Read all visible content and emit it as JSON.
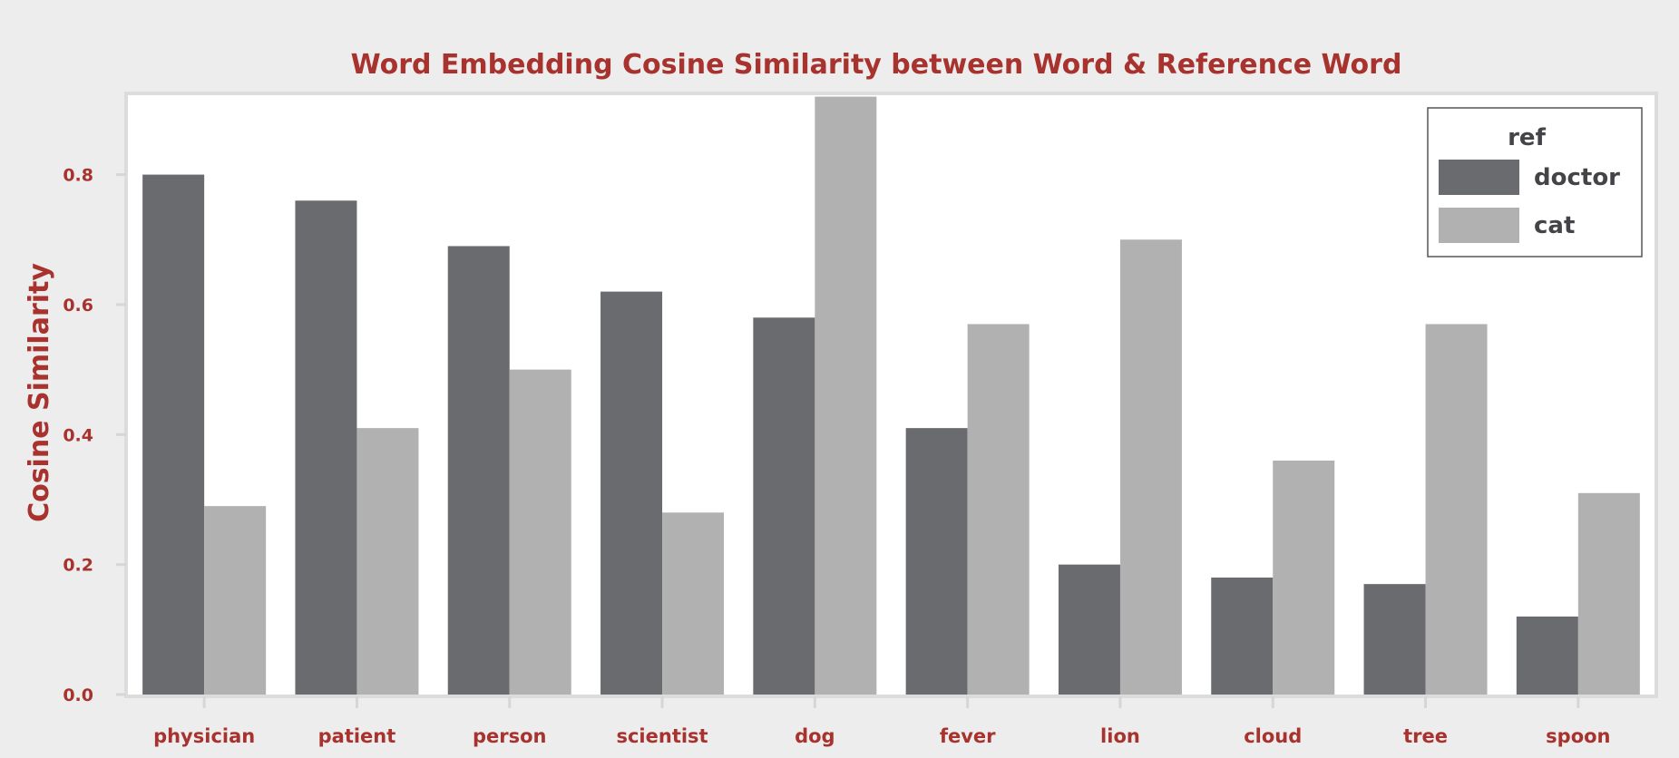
{
  "chart_data": {
    "type": "bar",
    "title": "Word Embedding Cosine Similarity between Word & Reference Word",
    "xlabel": "",
    "ylabel": "Cosine Similarity",
    "categories": [
      "physician",
      "patient",
      "person",
      "scientist",
      "dog",
      "fever",
      "lion",
      "cloud",
      "tree",
      "spoon"
    ],
    "series": [
      {
        "name": "doctor",
        "color": "#6a6b6f",
        "values": [
          0.8,
          0.76,
          0.69,
          0.62,
          0.58,
          0.41,
          0.2,
          0.18,
          0.17,
          0.12
        ]
      },
      {
        "name": "cat",
        "color": "#b1b1b1",
        "values": [
          0.29,
          0.41,
          0.5,
          0.28,
          0.92,
          0.57,
          0.7,
          0.36,
          0.57,
          0.31
        ]
      }
    ],
    "yticks": [
      "0.0",
      "0.2",
      "0.4",
      "0.6",
      "0.8"
    ],
    "ylim": [
      0,
      0.925
    ],
    "grid": false,
    "legend": {
      "title": "ref",
      "placement": "top-right"
    },
    "colors": {
      "title": "#a8322d",
      "background": "#ededed",
      "plot_background": "#ffffff"
    }
  }
}
